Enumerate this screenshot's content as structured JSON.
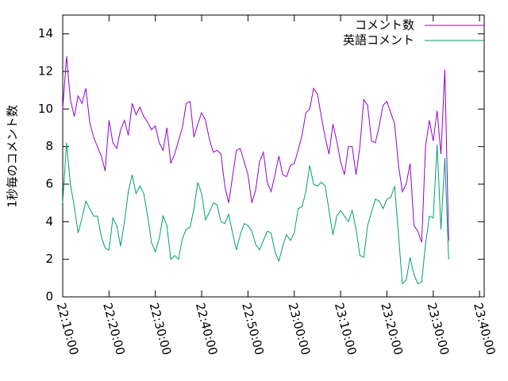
{
  "chart_data": {
    "type": "line",
    "ylabel": "1秒毎のコメント数",
    "x": [
      "22:10:00",
      "22:10:50",
      "22:11:40",
      "22:12:30",
      "22:13:20",
      "22:14:10",
      "22:15:00",
      "22:15:50",
      "22:16:40",
      "22:17:30",
      "22:18:20",
      "22:19:10",
      "22:20:00",
      "22:20:50",
      "22:21:40",
      "22:22:30",
      "22:23:20",
      "22:24:10",
      "22:25:00",
      "22:25:50",
      "22:26:40",
      "22:27:30",
      "22:28:20",
      "22:29:10",
      "22:30:00",
      "22:30:50",
      "22:31:40",
      "22:32:30",
      "22:33:20",
      "22:34:10",
      "22:35:00",
      "22:35:50",
      "22:36:40",
      "22:37:30",
      "22:38:20",
      "22:39:10",
      "22:40:00",
      "22:40:50",
      "22:41:40",
      "22:42:30",
      "22:43:20",
      "22:44:10",
      "22:45:00",
      "22:45:50",
      "22:46:40",
      "22:47:30",
      "22:48:20",
      "22:49:10",
      "22:50:00",
      "22:50:50",
      "22:51:40",
      "22:52:30",
      "22:53:20",
      "22:54:10",
      "22:55:00",
      "22:55:50",
      "22:56:40",
      "22:57:30",
      "22:58:20",
      "22:59:10",
      "23:00:00",
      "23:00:50",
      "23:01:40",
      "23:02:30",
      "23:03:20",
      "23:04:10",
      "23:05:00",
      "23:05:50",
      "23:06:40",
      "23:07:30",
      "23:08:20",
      "23:09:10",
      "23:10:00",
      "23:10:50",
      "23:11:40",
      "23:12:30",
      "23:13:20",
      "23:14:10",
      "23:15:00",
      "23:15:50",
      "23:16:40",
      "23:17:30",
      "23:18:20",
      "23:19:10",
      "23:20:00",
      "23:20:50",
      "23:21:40",
      "23:22:30",
      "23:23:20",
      "23:24:10",
      "23:25:00",
      "23:25:50",
      "23:26:40",
      "23:27:30",
      "23:28:20",
      "23:29:10",
      "23:30:00",
      "23:30:50",
      "23:31:40",
      "23:32:30",
      "23:33:20"
    ],
    "series": [
      {
        "name": "コメント数",
        "color": "#9400d3",
        "values": [
          10.0,
          12.8,
          10.5,
          9.6,
          10.7,
          10.3,
          11.1,
          9.3,
          8.5,
          8.0,
          7.5,
          6.7,
          9.4,
          8.2,
          7.9,
          8.9,
          9.4,
          8.6,
          10.3,
          9.7,
          10.1,
          9.6,
          9.3,
          8.9,
          9.1,
          8.2,
          7.8,
          9.0,
          7.1,
          7.6,
          8.3,
          9.0,
          10.3,
          10.4,
          8.5,
          9.2,
          9.8,
          9.4,
          8.4,
          7.7,
          7.8,
          7.6,
          5.9,
          5.0,
          6.4,
          7.8,
          7.9,
          7.2,
          6.5,
          5.0,
          5.7,
          7.2,
          7.7,
          6.1,
          5.6,
          6.5,
          7.5,
          6.5,
          6.4,
          7.0,
          7.1,
          7.8,
          8.6,
          9.8,
          10.0,
          11.1,
          10.8,
          9.6,
          8.5,
          7.6,
          9.2,
          8.3,
          7.2,
          6.5,
          8.0,
          8.0,
          6.5,
          8.0,
          10.5,
          10.2,
          8.3,
          8.2,
          9.1,
          10.2,
          10.4,
          9.8,
          9.2,
          7.0,
          5.6,
          6.0,
          7.1,
          3.8,
          3.5,
          2.9,
          8.0,
          9.4,
          8.3,
          9.9,
          7.6,
          12.1,
          3.0
        ]
      },
      {
        "name": "英語コメント",
        "color": "#009e73",
        "values": [
          5.0,
          8.2,
          6.0,
          4.8,
          3.4,
          4.2,
          5.1,
          4.7,
          4.3,
          4.3,
          3.2,
          2.6,
          2.5,
          4.2,
          3.8,
          2.7,
          4.0,
          5.6,
          6.5,
          5.5,
          5.9,
          5.5,
          4.3,
          2.9,
          2.4,
          3.1,
          4.3,
          3.8,
          2.0,
          2.2,
          2.0,
          3.1,
          3.6,
          3.7,
          4.7,
          6.1,
          5.5,
          4.1,
          4.5,
          5.0,
          4.9,
          4.0,
          3.9,
          4.4,
          3.4,
          2.5,
          3.3,
          3.9,
          3.8,
          3.5,
          2.8,
          2.5,
          3.0,
          3.5,
          3.4,
          2.4,
          1.9,
          2.7,
          3.3,
          3.0,
          3.4,
          4.7,
          4.8,
          5.6,
          7.0,
          6.0,
          5.9,
          6.1,
          5.9,
          4.6,
          3.3,
          4.3,
          4.6,
          4.3,
          4.0,
          4.6,
          3.6,
          2.2,
          2.1,
          3.8,
          4.5,
          5.2,
          5.1,
          4.7,
          5.2,
          5.3,
          5.9,
          3.3,
          0.7,
          0.9,
          2.1,
          1.2,
          0.7,
          0.8,
          2.8,
          4.3,
          4.2,
          8.1,
          3.6,
          7.4,
          2.0
        ]
      }
    ],
    "xlim": [
      "22:10:00",
      "23:41:00"
    ],
    "xticks": [
      "22:10:00",
      "22:20:00",
      "22:30:00",
      "22:40:00",
      "22:50:00",
      "23:00:00",
      "23:10:00",
      "23:20:00",
      "23:30:00",
      "23:40:00"
    ],
    "ylim": [
      0,
      15
    ],
    "yticks": [
      0,
      2,
      4,
      6,
      8,
      10,
      12,
      14
    ],
    "legend": "top-right"
  }
}
